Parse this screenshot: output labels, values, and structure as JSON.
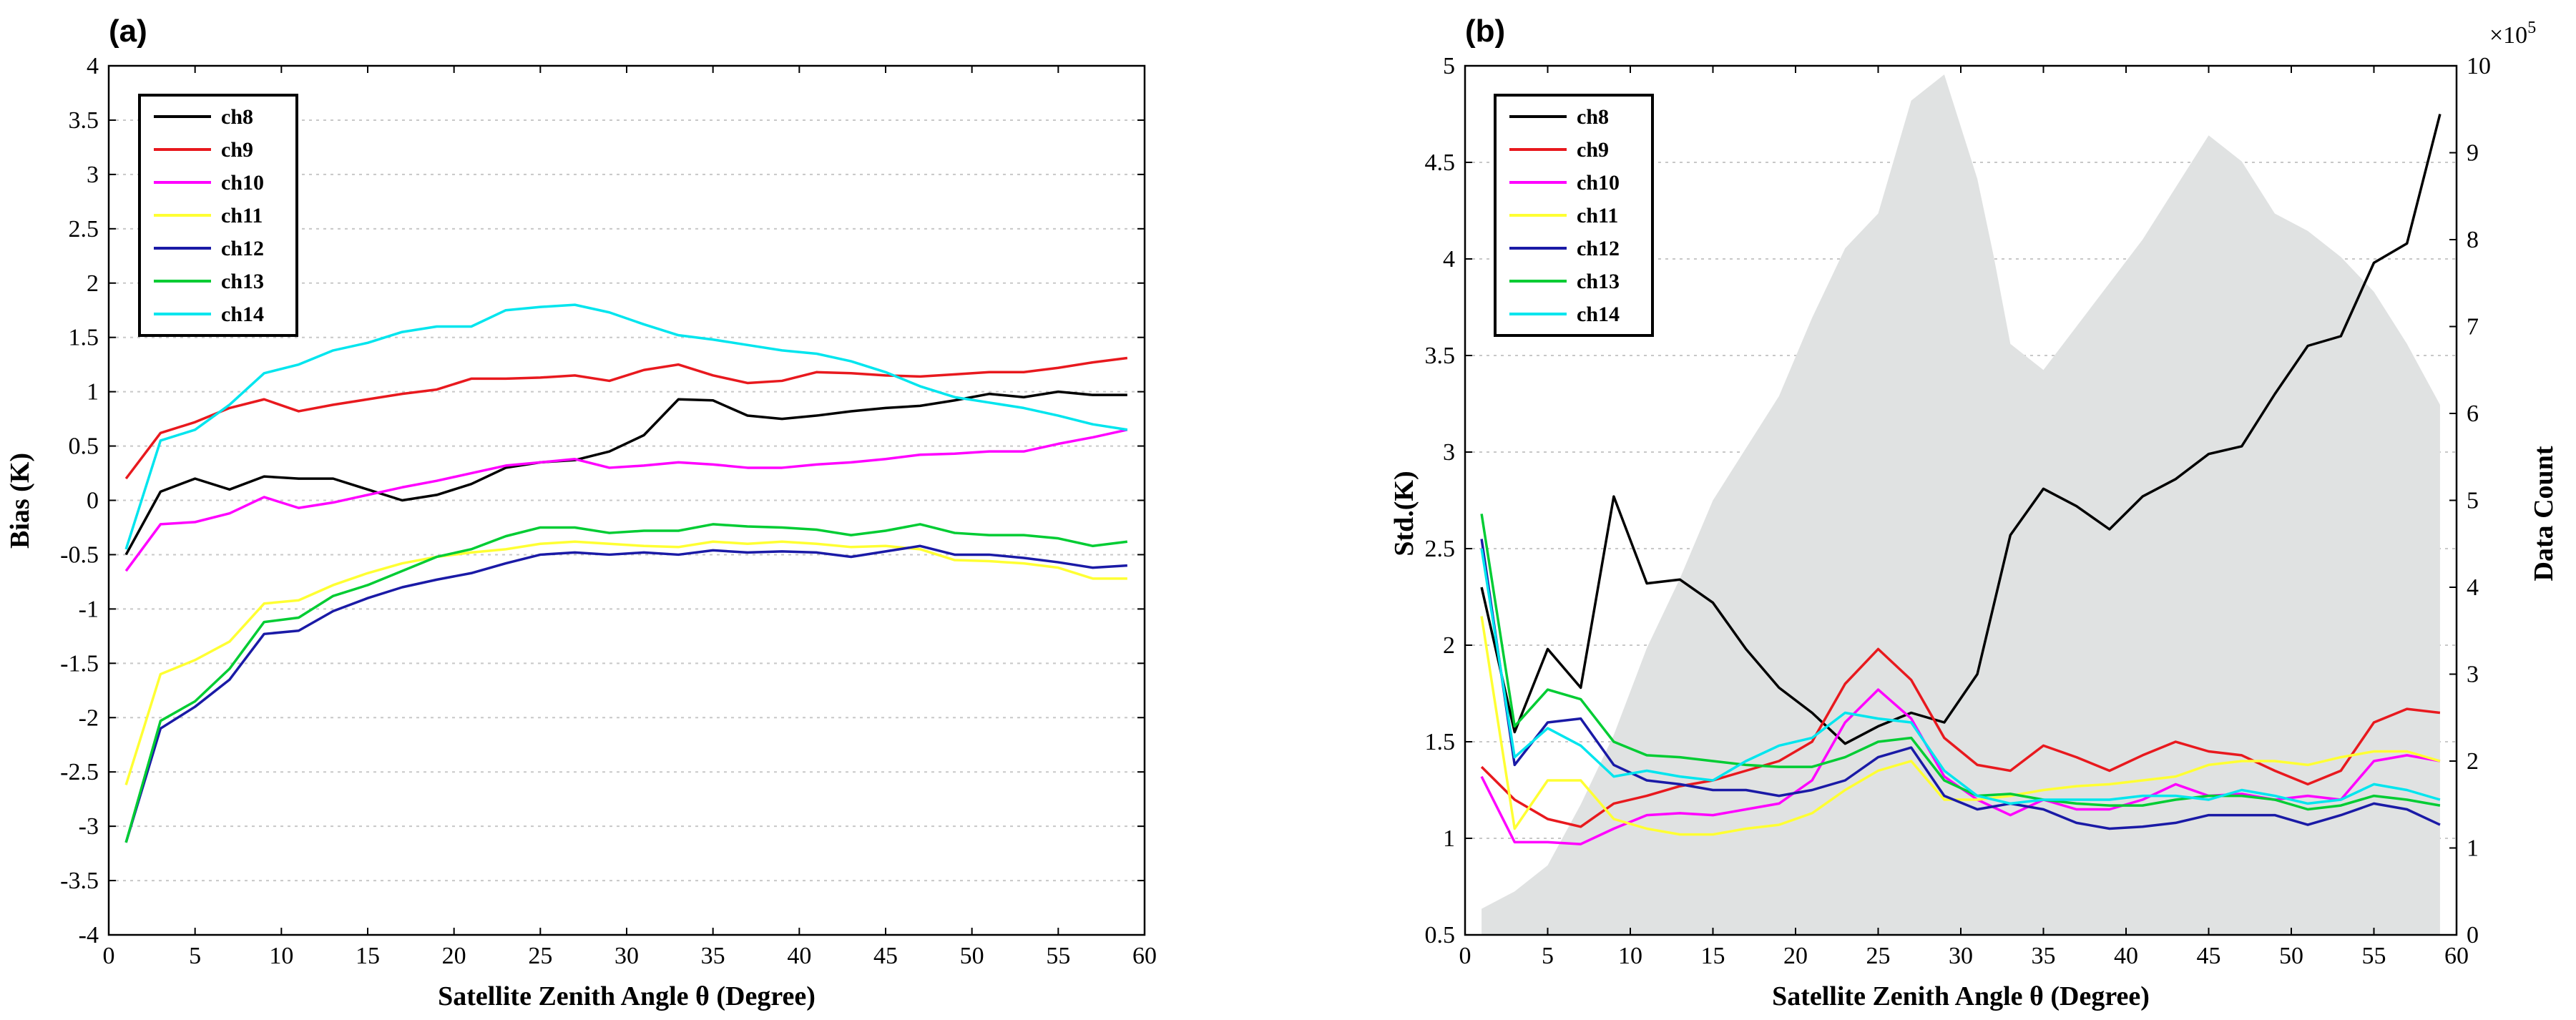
{
  "chart_data": [
    {
      "type": "line",
      "panel_label": "(a)",
      "xlabel": "Satellite Zenith Angle θ (Degree)",
      "ylabel": "Bias (K)",
      "xlim": [
        0,
        60
      ],
      "ylim": [
        -4,
        4
      ],
      "xticks": [
        0,
        5,
        10,
        15,
        20,
        25,
        30,
        35,
        40,
        45,
        50,
        55,
        60
      ],
      "xtick_labels": [
        "0",
        "5",
        "10",
        "15",
        "20",
        "25",
        "30",
        "35",
        "40",
        "45",
        "50",
        "55",
        "60"
      ],
      "yticks": [
        -4,
        -3.5,
        -3,
        -2.5,
        -2,
        -1.5,
        -1,
        -0.5,
        0,
        0.5,
        1,
        1.5,
        2,
        2.5,
        3,
        3.5,
        4
      ],
      "ytick_labels": [
        "-4",
        "-3.5",
        "-3",
        "-2.5",
        "-2",
        "-1.5",
        "-1",
        "-0.5",
        "0",
        "0.5",
        "1",
        "1.5",
        "2",
        "2.5",
        "3",
        "3.5",
        "4"
      ],
      "grid": "horizontal dotted",
      "legend_position": "top-left",
      "x": [
        1,
        3,
        5,
        7,
        9,
        11,
        13,
        15,
        17,
        19,
        21,
        23,
        25,
        27,
        29,
        31,
        33,
        35,
        37,
        39,
        41,
        43,
        45,
        47,
        49,
        51,
        53,
        55,
        57,
        59
      ],
      "series": [
        {
          "name": "ch8",
          "color": "#000000",
          "values": [
            -0.5,
            0.08,
            0.2,
            0.1,
            0.22,
            0.2,
            0.2,
            0.1,
            0.0,
            0.05,
            0.15,
            0.3,
            0.35,
            0.37,
            0.45,
            0.6,
            0.93,
            0.92,
            0.78,
            0.75,
            0.78,
            0.82,
            0.85,
            0.87,
            0.92,
            0.98,
            0.95,
            1.0,
            0.97,
            0.97
          ]
        },
        {
          "name": "ch9",
          "color": "#e8191e",
          "values": [
            0.2,
            0.62,
            0.72,
            0.85,
            0.93,
            0.82,
            0.88,
            0.93,
            0.98,
            1.02,
            1.12,
            1.12,
            1.13,
            1.15,
            1.1,
            1.2,
            1.25,
            1.15,
            1.08,
            1.1,
            1.18,
            1.17,
            1.15,
            1.14,
            1.16,
            1.18,
            1.18,
            1.22,
            1.27,
            1.31
          ]
        },
        {
          "name": "ch10",
          "color": "#ff00ff",
          "values": [
            -0.65,
            -0.22,
            -0.2,
            -0.12,
            0.03,
            -0.07,
            -0.02,
            0.05,
            0.12,
            0.18,
            0.25,
            0.32,
            0.35,
            0.38,
            0.3,
            0.32,
            0.35,
            0.33,
            0.3,
            0.3,
            0.33,
            0.35,
            0.38,
            0.42,
            0.43,
            0.45,
            0.45,
            0.52,
            0.58,
            0.65
          ]
        },
        {
          "name": "ch11",
          "color": "#ffff33",
          "values": [
            -2.62,
            -1.6,
            -1.47,
            -1.3,
            -0.95,
            -0.92,
            -0.78,
            -0.67,
            -0.58,
            -0.52,
            -0.48,
            -0.45,
            -0.4,
            -0.38,
            -0.4,
            -0.42,
            -0.43,
            -0.38,
            -0.4,
            -0.38,
            -0.4,
            -0.43,
            -0.42,
            -0.45,
            -0.55,
            -0.56,
            -0.58,
            -0.62,
            -0.72,
            -0.72
          ]
        },
        {
          "name": "ch12",
          "color": "#1a1aa6",
          "values": [
            -3.15,
            -2.1,
            -1.9,
            -1.65,
            -1.23,
            -1.2,
            -1.02,
            -0.9,
            -0.8,
            -0.73,
            -0.67,
            -0.58,
            -0.5,
            -0.48,
            -0.5,
            -0.48,
            -0.5,
            -0.46,
            -0.48,
            -0.47,
            -0.48,
            -0.52,
            -0.47,
            -0.42,
            -0.5,
            -0.5,
            -0.53,
            -0.57,
            -0.62,
            -0.6
          ]
        },
        {
          "name": "ch13",
          "color": "#00cc33",
          "values": [
            -3.15,
            -2.03,
            -1.85,
            -1.55,
            -1.12,
            -1.08,
            -0.88,
            -0.78,
            -0.65,
            -0.52,
            -0.45,
            -0.33,
            -0.25,
            -0.25,
            -0.3,
            -0.28,
            -0.28,
            -0.22,
            -0.24,
            -0.25,
            -0.27,
            -0.32,
            -0.28,
            -0.22,
            -0.3,
            -0.32,
            -0.32,
            -0.35,
            -0.42,
            -0.38
          ]
        },
        {
          "name": "ch14",
          "color": "#00e5ee",
          "values": [
            -0.45,
            0.55,
            0.65,
            0.88,
            1.17,
            1.25,
            1.38,
            1.45,
            1.55,
            1.6,
            1.6,
            1.75,
            1.78,
            1.8,
            1.73,
            1.62,
            1.52,
            1.48,
            1.43,
            1.38,
            1.35,
            1.28,
            1.18,
            1.05,
            0.95,
            0.9,
            0.85,
            0.78,
            0.7,
            0.65
          ]
        }
      ]
    },
    {
      "type": "line",
      "panel_label": "(b)",
      "xlabel": "Satellite Zenith Angle θ (Degree)",
      "ylabel": "Std.(K)",
      "y2label": "Data Count",
      "xlim": [
        0,
        60
      ],
      "ylim": [
        0.5,
        5
      ],
      "y2lim": [
        0,
        10
      ],
      "y2_scale_label": "×10",
      "y2_scale_exponent": "5",
      "xticks": [
        0,
        5,
        10,
        15,
        20,
        25,
        30,
        35,
        40,
        45,
        50,
        55,
        60
      ],
      "xtick_labels": [
        "0",
        "5",
        "10",
        "15",
        "20",
        "25",
        "30",
        "35",
        "40",
        "45",
        "50",
        "55",
        "60"
      ],
      "yticks": [
        0.5,
        1,
        1.5,
        2,
        2.5,
        3,
        3.5,
        4,
        4.5,
        5
      ],
      "ytick_labels": [
        "0.5",
        "1",
        "1.5",
        "2",
        "2.5",
        "3",
        "3.5",
        "4",
        "4.5",
        "5"
      ],
      "y2ticks": [
        0,
        1,
        2,
        3,
        4,
        5,
        6,
        7,
        8,
        9,
        10
      ],
      "y2tick_labels": [
        "0",
        "1",
        "2",
        "3",
        "4",
        "5",
        "6",
        "7",
        "8",
        "9",
        "10"
      ],
      "grid": "horizontal dotted",
      "legend_position": "top-left",
      "area_series": {
        "name": "Data Count",
        "color": "#e0e2e2",
        "x": [
          1,
          3,
          5,
          7,
          9,
          11,
          13,
          15,
          17,
          19,
          21,
          23,
          25,
          27,
          29,
          31,
          32,
          33,
          35,
          37,
          39,
          41,
          43,
          45,
          47,
          49,
          51,
          53,
          55,
          57,
          59
        ],
        "values": [
          0.3,
          0.5,
          0.8,
          1.5,
          2.3,
          3.3,
          4.1,
          5.0,
          5.6,
          6.2,
          7.1,
          7.9,
          8.3,
          9.6,
          9.9,
          8.7,
          7.8,
          6.8,
          6.5,
          7.0,
          7.5,
          8.0,
          8.6,
          9.2,
          8.9,
          8.3,
          8.1,
          7.8,
          7.4,
          6.8,
          6.1
        ]
      },
      "x": [
        1,
        3,
        5,
        7,
        9,
        11,
        13,
        15,
        17,
        19,
        21,
        23,
        25,
        27,
        29,
        31,
        33,
        35,
        37,
        39,
        41,
        43,
        45,
        47,
        49,
        51,
        53,
        55,
        57,
        59
      ],
      "series": [
        {
          "name": "ch8",
          "color": "#000000",
          "values": [
            2.3,
            1.55,
            1.98,
            1.78,
            2.77,
            2.32,
            2.34,
            2.22,
            1.98,
            1.78,
            1.65,
            1.49,
            1.58,
            1.65,
            1.6,
            1.85,
            2.57,
            2.81,
            2.72,
            2.6,
            2.77,
            2.86,
            2.99,
            3.03,
            3.3,
            3.55,
            3.6,
            3.98,
            4.08,
            4.75
          ]
        },
        {
          "name": "ch9",
          "color": "#e8191e",
          "values": [
            1.37,
            1.2,
            1.1,
            1.06,
            1.18,
            1.22,
            1.27,
            1.3,
            1.35,
            1.4,
            1.5,
            1.8,
            1.98,
            1.82,
            1.52,
            1.38,
            1.35,
            1.48,
            1.42,
            1.35,
            1.43,
            1.5,
            1.45,
            1.43,
            1.35,
            1.28,
            1.35,
            1.6,
            1.67,
            1.65
          ]
        },
        {
          "name": "ch10",
          "color": "#ff00ff",
          "values": [
            1.32,
            0.98,
            0.98,
            0.97,
            1.05,
            1.12,
            1.13,
            1.12,
            1.15,
            1.18,
            1.3,
            1.6,
            1.77,
            1.62,
            1.32,
            1.2,
            1.12,
            1.2,
            1.15,
            1.15,
            1.2,
            1.28,
            1.22,
            1.23,
            1.2,
            1.22,
            1.2,
            1.4,
            1.43,
            1.4
          ]
        },
        {
          "name": "ch11",
          "color": "#ffff33",
          "values": [
            2.15,
            1.05,
            1.3,
            1.3,
            1.1,
            1.05,
            1.02,
            1.02,
            1.05,
            1.07,
            1.13,
            1.25,
            1.35,
            1.4,
            1.2,
            1.2,
            1.22,
            1.25,
            1.27,
            1.28,
            1.3,
            1.32,
            1.38,
            1.4,
            1.4,
            1.38,
            1.42,
            1.45,
            1.45,
            1.4
          ]
        },
        {
          "name": "ch12",
          "color": "#1a1aa6",
          "values": [
            2.55,
            1.38,
            1.6,
            1.62,
            1.38,
            1.3,
            1.28,
            1.25,
            1.25,
            1.22,
            1.25,
            1.3,
            1.42,
            1.47,
            1.22,
            1.15,
            1.18,
            1.15,
            1.08,
            1.05,
            1.06,
            1.08,
            1.12,
            1.12,
            1.12,
            1.07,
            1.12,
            1.18,
            1.15,
            1.07
          ]
        },
        {
          "name": "ch13",
          "color": "#00cc33",
          "values": [
            2.68,
            1.58,
            1.77,
            1.72,
            1.5,
            1.43,
            1.42,
            1.4,
            1.38,
            1.37,
            1.37,
            1.42,
            1.5,
            1.52,
            1.3,
            1.22,
            1.23,
            1.2,
            1.18,
            1.17,
            1.17,
            1.2,
            1.22,
            1.22,
            1.2,
            1.15,
            1.17,
            1.22,
            1.2,
            1.17
          ]
        },
        {
          "name": "ch14",
          "color": "#00e5ee",
          "values": [
            2.5,
            1.42,
            1.57,
            1.48,
            1.32,
            1.35,
            1.32,
            1.3,
            1.4,
            1.48,
            1.52,
            1.65,
            1.62,
            1.6,
            1.35,
            1.22,
            1.18,
            1.2,
            1.2,
            1.2,
            1.22,
            1.22,
            1.2,
            1.25,
            1.22,
            1.18,
            1.2,
            1.28,
            1.25,
            1.2
          ]
        }
      ]
    }
  ]
}
